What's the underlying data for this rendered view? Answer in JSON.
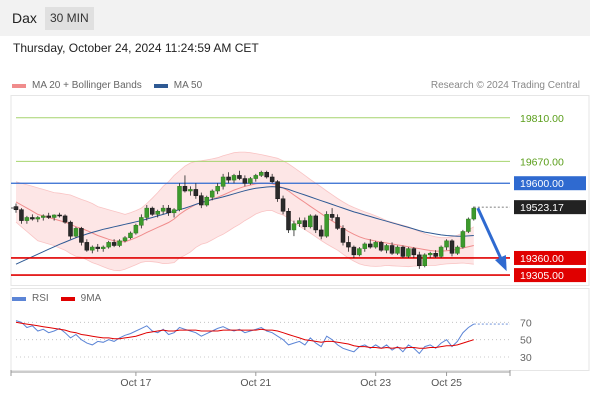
{
  "header": {
    "instrument": "Dax",
    "timeframe": "30 MIN"
  },
  "datetime": "Thursday, October 24, 2024 11:24:59 AM CET",
  "legend": [
    {
      "label": "MA 20 + Bollinger Bands",
      "color": "#f08c8c"
    },
    {
      "label": "MA 50",
      "color": "#2f5a94"
    }
  ],
  "credit": "Research © 2024 Trading Central",
  "rsi_legend": [
    {
      "label": "RSI",
      "color": "#5c85d6"
    },
    {
      "label": "9MA",
      "color": "#e00000"
    }
  ],
  "chart_data": {
    "type": "candlestick",
    "y_range": [
      19270,
      19880
    ],
    "candles": [
      [
        19525,
        19535,
        19505,
        19515
      ],
      [
        19515,
        19520,
        19470,
        19480
      ],
      [
        19480,
        19495,
        19470,
        19490
      ],
      [
        19490,
        19500,
        19480,
        19485
      ],
      [
        19485,
        19495,
        19475,
        19490
      ],
      [
        19490,
        19500,
        19480,
        19495
      ],
      [
        19495,
        19505,
        19485,
        19490
      ],
      [
        19490,
        19500,
        19480,
        19498
      ],
      [
        19498,
        19505,
        19490,
        19495
      ],
      [
        19495,
        19500,
        19470,
        19475
      ],
      [
        19475,
        19480,
        19420,
        19430
      ],
      [
        19430,
        19460,
        19425,
        19455
      ],
      [
        19455,
        19460,
        19400,
        19410
      ],
      [
        19410,
        19420,
        19380,
        19385
      ],
      [
        19385,
        19400,
        19375,
        19395
      ],
      [
        19395,
        19405,
        19380,
        19390
      ],
      [
        19390,
        19400,
        19380,
        19395
      ],
      [
        19395,
        19415,
        19390,
        19410
      ],
      [
        19410,
        19420,
        19395,
        19400
      ],
      [
        19400,
        19420,
        19395,
        19415
      ],
      [
        19415,
        19430,
        19410,
        19425
      ],
      [
        19425,
        19445,
        19420,
        19440
      ],
      [
        19440,
        19470,
        19435,
        19465
      ],
      [
        19465,
        19500,
        19455,
        19490
      ],
      [
        19490,
        19530,
        19480,
        19520
      ],
      [
        19520,
        19525,
        19495,
        19500
      ],
      [
        19500,
        19515,
        19490,
        19510
      ],
      [
        19510,
        19530,
        19500,
        19520
      ],
      [
        19520,
        19530,
        19495,
        19505
      ],
      [
        19505,
        19520,
        19490,
        19515
      ],
      [
        19515,
        19600,
        19510,
        19590
      ],
      [
        19590,
        19625,
        19570,
        19575
      ],
      [
        19575,
        19590,
        19560,
        19580
      ],
      [
        19580,
        19600,
        19550,
        19560
      ],
      [
        19560,
        19570,
        19520,
        19530
      ],
      [
        19530,
        19560,
        19525,
        19555
      ],
      [
        19555,
        19580,
        19545,
        19575
      ],
      [
        19575,
        19600,
        19565,
        19590
      ],
      [
        19590,
        19630,
        19580,
        19620
      ],
      [
        19620,
        19635,
        19600,
        19610
      ],
      [
        19610,
        19630,
        19600,
        19625
      ],
      [
        19625,
        19640,
        19610,
        19615
      ],
      [
        19615,
        19625,
        19590,
        19600
      ],
      [
        19600,
        19620,
        19595,
        19615
      ],
      [
        19615,
        19630,
        19605,
        19625
      ],
      [
        19625,
        19640,
        19620,
        19635
      ],
      [
        19635,
        19640,
        19615,
        19620
      ],
      [
        19620,
        19630,
        19600,
        19605
      ],
      [
        19605,
        19610,
        19540,
        19550
      ],
      [
        19550,
        19560,
        19500,
        19510
      ],
      [
        19510,
        19520,
        19440,
        19450
      ],
      [
        19450,
        19480,
        19430,
        19470
      ],
      [
        19470,
        19490,
        19460,
        19480
      ],
      [
        19480,
        19490,
        19450,
        19460
      ],
      [
        19460,
        19500,
        19455,
        19495
      ],
      [
        19495,
        19500,
        19440,
        19450
      ],
      [
        19450,
        19465,
        19420,
        19430
      ],
      [
        19430,
        19510,
        19425,
        19500
      ],
      [
        19500,
        19520,
        19480,
        19490
      ],
      [
        19490,
        19500,
        19450,
        19455
      ],
      [
        19455,
        19465,
        19400,
        19410
      ],
      [
        19410,
        19430,
        19380,
        19395
      ],
      [
        19395,
        19400,
        19360,
        19370
      ],
      [
        19370,
        19395,
        19365,
        19390
      ],
      [
        19390,
        19410,
        19380,
        19405
      ],
      [
        19405,
        19420,
        19390,
        19395
      ],
      [
        19395,
        19415,
        19390,
        19410
      ],
      [
        19410,
        19415,
        19380,
        19385
      ],
      [
        19385,
        19405,
        19375,
        19400
      ],
      [
        19400,
        19410,
        19370,
        19375
      ],
      [
        19375,
        19400,
        19370,
        19395
      ],
      [
        19395,
        19400,
        19360,
        19365
      ],
      [
        19365,
        19395,
        19360,
        19390
      ],
      [
        19390,
        19395,
        19360,
        19370
      ],
      [
        19370,
        19380,
        19325,
        19335
      ],
      [
        19335,
        19375,
        19330,
        19370
      ],
      [
        19370,
        19380,
        19360,
        19375
      ],
      [
        19375,
        19385,
        19360,
        19365
      ],
      [
        19365,
        19400,
        19360,
        19395
      ],
      [
        19395,
        19420,
        19385,
        19415
      ],
      [
        19415,
        19420,
        19365,
        19375
      ],
      [
        19375,
        19400,
        19370,
        19395
      ],
      [
        19395,
        19450,
        19390,
        19445
      ],
      [
        19445,
        19490,
        19440,
        19485
      ],
      [
        19485,
        19525,
        19480,
        19520
      ]
    ],
    "ma20": [
      19540,
      19530,
      19520,
      19510,
      19500,
      19495,
      19490,
      19485,
      19480,
      19475,
      19468,
      19460,
      19455,
      19448,
      19440,
      19432,
      19426,
      19420,
      19415,
      19412,
      19412,
      19418,
      19425,
      19433,
      19442,
      19450,
      19458,
      19466,
      19474,
      19485,
      19500,
      19512,
      19522,
      19532,
      19538,
      19542,
      19548,
      19555,
      19562,
      19570,
      19578,
      19584,
      19590,
      19594,
      19598,
      19600,
      19600,
      19598,
      19592,
      19585,
      19575,
      19562,
      19550,
      19538,
      19526,
      19514,
      19502,
      19490,
      19479,
      19468,
      19456,
      19445,
      19436,
      19428,
      19422,
      19418,
      19414,
      19411,
      19408,
      19405,
      19402,
      19399,
      19396,
      19393,
      19390,
      19387,
      19384,
      19382,
      19382,
      19383,
      19385,
      19388,
      19392,
      19396,
      19400
    ],
    "bb_upper": [
      19605,
      19600,
      19595,
      19590,
      19585,
      19580,
      19575,
      19570,
      19568,
      19565,
      19562,
      19555,
      19548,
      19542,
      19535,
      19525,
      19520,
      19515,
      19510,
      19505,
      19500,
      19505,
      19512,
      19520,
      19535,
      19552,
      19570,
      19590,
      19605,
      19625,
      19640,
      19655,
      19665,
      19670,
      19672,
      19675,
      19678,
      19682,
      19688,
      19693,
      19698,
      19700,
      19700,
      19698,
      19695,
      19692,
      19688,
      19684,
      19680,
      19672,
      19662,
      19650,
      19638,
      19625,
      19612,
      19600,
      19588,
      19575,
      19563,
      19551,
      19540,
      19530,
      19522,
      19515,
      19508,
      19502,
      19495,
      19488,
      19480,
      19475,
      19470,
      19465,
      19460,
      19452,
      19445,
      19438,
      19432,
      19428,
      19425,
      19425,
      19428,
      19433,
      19440,
      19450,
      19460
    ],
    "bb_lower": [
      19475,
      19460,
      19445,
      19430,
      19415,
      19410,
      19405,
      19400,
      19392,
      19385,
      19374,
      19365,
      19362,
      19354,
      19345,
      19339,
      19332,
      19325,
      19320,
      19319,
      19324,
      19331,
      19338,
      19346,
      19349,
      19348,
      19346,
      19342,
      19343,
      19345,
      19360,
      19369,
      19379,
      19394,
      19404,
      19409,
      19418,
      19428,
      19436,
      19447,
      19458,
      19468,
      19480,
      19490,
      19501,
      19508,
      19512,
      19512,
      19504,
      19498,
      19488,
      19474,
      19462,
      19451,
      19440,
      19428,
      19416,
      19405,
      19395,
      19385,
      19372,
      19360,
      19350,
      19341,
      19336,
      19334,
      19333,
      19334,
      19336,
      19335,
      19334,
      19333,
      19332,
      19334,
      19335,
      19336,
      19336,
      19336,
      19339,
      19341,
      19342,
      19343,
      19344,
      19342,
      19340
    ],
    "ma50": [
      19340,
      19348,
      19356,
      19364,
      19372,
      19380,
      19388,
      19396,
      19404,
      19411,
      19418,
      19425,
      19431,
      19437,
      19442,
      19447,
      19452,
      19456,
      19460,
      19464,
      19468,
      19472,
      19476,
      19480,
      19485,
      19490,
      19495,
      19500,
      19505,
      19510,
      19515,
      19520,
      19526,
      19532,
      19538,
      19543,
      19548,
      19552,
      19556,
      19561,
      19566,
      19571,
      19576,
      19580,
      19584,
      19586,
      19588,
      19589,
      19588,
      19585,
      19580,
      19574,
      19568,
      19562,
      19556,
      19550,
      19544,
      19538,
      19532,
      19526,
      19520,
      19514,
      19508,
      19503,
      19498,
      19493,
      19488,
      19483,
      19478,
      19473,
      19468,
      19463,
      19458,
      19453,
      19448,
      19443,
      19440,
      19437,
      19434,
      19432,
      19431,
      19430,
      19430,
      19431,
      19432
    ],
    "rsi": [
      72,
      70,
      64,
      66,
      60,
      62,
      58,
      60,
      63,
      58,
      52,
      56,
      50,
      46,
      44,
      48,
      47,
      50,
      48,
      52,
      55,
      57,
      60,
      63,
      66,
      60,
      58,
      62,
      56,
      58,
      64,
      62,
      60,
      58,
      54,
      57,
      60,
      63,
      65,
      62,
      60,
      62,
      58,
      60,
      62,
      64,
      60,
      58,
      54,
      50,
      44,
      46,
      48,
      44,
      52,
      46,
      42,
      54,
      50,
      44,
      40,
      38,
      36,
      42,
      44,
      40,
      44,
      40,
      44,
      38,
      42,
      36,
      44,
      40,
      34,
      42,
      44,
      40,
      46,
      50,
      42,
      48,
      58,
      64,
      68
    ],
    "rsi_ma": [
      70,
      69,
      68,
      67,
      66,
      65,
      64,
      63,
      62,
      61,
      59,
      58,
      56,
      55,
      54,
      53,
      52,
      52,
      51,
      51,
      52,
      53,
      54,
      56,
      58,
      59,
      60,
      61,
      60,
      60,
      61,
      61,
      61,
      61,
      60,
      60,
      60,
      60,
      61,
      61,
      61,
      61,
      61,
      61,
      61,
      62,
      61,
      61,
      60,
      58,
      56,
      54,
      52,
      50,
      49,
      48,
      47,
      48,
      48,
      47,
      46,
      45,
      43,
      42,
      42,
      41,
      41,
      40,
      41,
      40,
      41,
      40,
      41,
      41,
      40,
      40,
      41,
      41,
      42,
      43,
      43,
      44,
      46,
      48,
      50
    ],
    "levels": [
      {
        "value": 19810,
        "label": "19810.00",
        "kind": "resistance"
      },
      {
        "value": 19670,
        "label": "19670.00",
        "kind": "resistance"
      },
      {
        "value": 19600,
        "label": "19600.00",
        "kind": "pivot"
      },
      {
        "value": 19523.17,
        "label": "19523.17",
        "kind": "last"
      },
      {
        "value": 19360,
        "label": "19360.00",
        "kind": "support"
      },
      {
        "value": 19305,
        "label": "19305.00",
        "kind": "support"
      }
    ],
    "forecast_arrow": {
      "from": 19520,
      "to": 19310
    },
    "x_ticks": [
      {
        "index": 22,
        "label": "Oct 17"
      },
      {
        "index": 44,
        "label": "Oct 21"
      },
      {
        "index": 66,
        "label": "Oct 23"
      },
      {
        "index": 79,
        "label": "Oct 25"
      }
    ],
    "rsi_range": [
      15,
      90
    ],
    "rsi_ticks": [
      70,
      50,
      30
    ]
  }
}
